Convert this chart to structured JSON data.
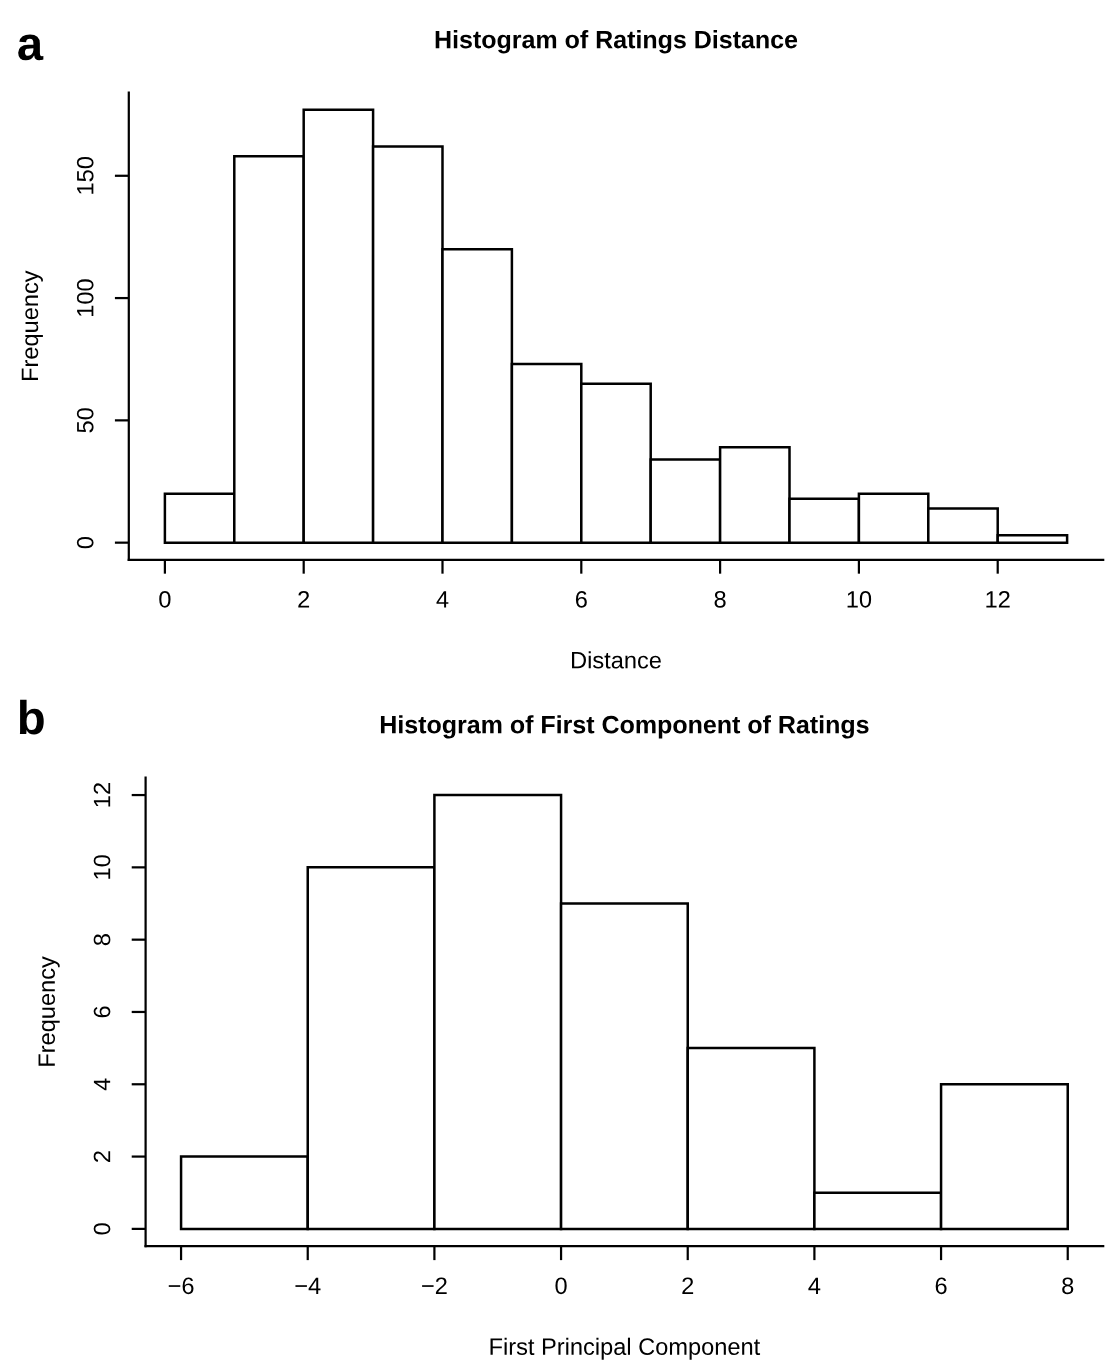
{
  "chart_data": [
    {
      "type": "histogram",
      "title": "Histogram of Ratings Distance",
      "xlabel": "Distance",
      "ylabel": "Frequency",
      "annotations": [
        "a"
      ],
      "bins": [
        0,
        1,
        2,
        3,
        4,
        5,
        6,
        7,
        8,
        9,
        10,
        11,
        12,
        13
      ],
      "values": [
        20,
        158,
        177,
        162,
        120,
        73,
        65,
        34,
        39,
        18,
        20,
        14,
        3
      ],
      "color": "#ffffff",
      "xlim": [
        -0.52,
        13.52
      ],
      "ylim": [
        -7,
        184
      ],
      "xticks": [
        0,
        2,
        4,
        6,
        8,
        10,
        12
      ],
      "yticks": [
        0,
        50,
        100,
        150
      ],
      "grid": false,
      "legend": false
    },
    {
      "type": "histogram",
      "title": "Histogram of First Component of Ratings",
      "xlabel": "First Principal Component",
      "ylabel": "Frequency",
      "annotations": [
        "b"
      ],
      "bins": [
        -6,
        -4,
        -2,
        0,
        2,
        4,
        6,
        8
      ],
      "values": [
        2,
        10,
        12,
        9,
        5,
        1,
        4
      ],
      "color": "#ffffff",
      "xlim": [
        -6.56,
        8.56
      ],
      "ylim": [
        -0.48,
        12.48
      ],
      "xticks": [
        {
          "value": -6,
          "label": "−6"
        },
        {
          "value": -4,
          "label": "−4"
        },
        {
          "value": -2,
          "label": "−2"
        },
        0,
        2,
        4,
        6,
        8
      ],
      "yticks": [
        0,
        2,
        4,
        6,
        8,
        10,
        12
      ],
      "grid": false,
      "legend": false
    }
  ]
}
